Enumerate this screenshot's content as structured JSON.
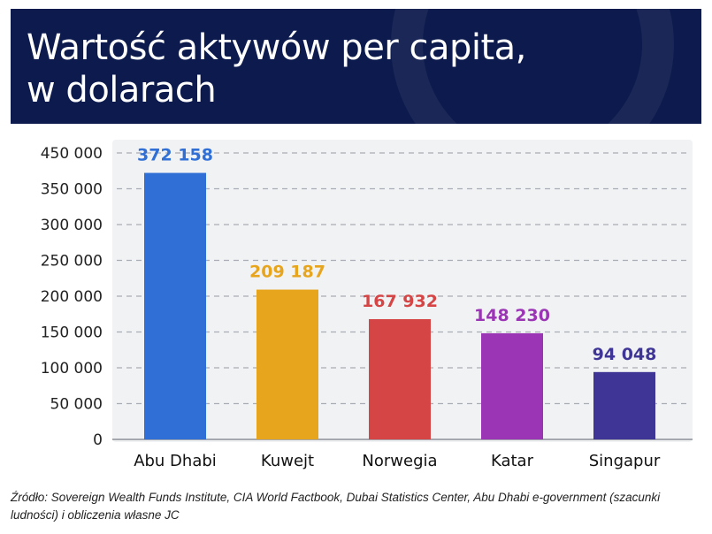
{
  "chart_data": {
    "type": "bar",
    "title": "Wartość aktywów per capita,\nw dolarach",
    "categories": [
      "Abu Dhabi",
      "Kuwejt",
      "Norwegia",
      "Katar",
      "Singapur"
    ],
    "values": [
      372158,
      209187,
      167932,
      148230,
      94048
    ],
    "value_labels": [
      "372 158",
      "209 187",
      "167 932",
      "148 230",
      "94 048"
    ],
    "colors": [
      "#2f6fd6",
      "#e7a51e",
      "#d64545",
      "#9b35b5",
      "#3e3596"
    ],
    "yticks": [
      0,
      50000,
      100000,
      150000,
      200000,
      250000,
      300000,
      350000,
      450000
    ],
    "ytick_labels": [
      "0",
      "50 000",
      "100 000",
      "150 000",
      "200 000",
      "250 000",
      "300 000",
      "350 000",
      "450 000"
    ],
    "ylim": [
      0,
      400000
    ],
    "xlabel": "",
    "ylabel": "",
    "grid": true,
    "legend": "none"
  },
  "source": "Źródło: Sovereign Wealth Funds Institute, CIA World Factbook, Dubai Statistics Center, Abu Dhabi e-government (szacunki ludności) i obliczenia własne JC"
}
